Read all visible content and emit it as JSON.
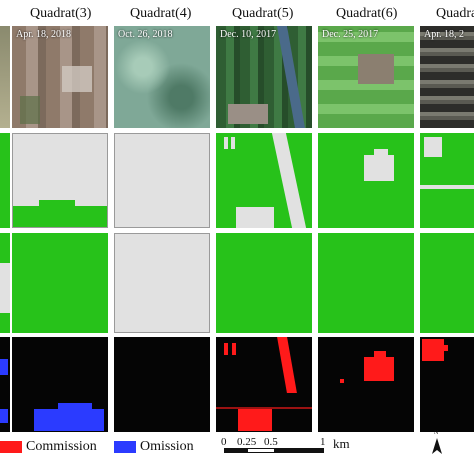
{
  "headers": [
    "Quadrat(3)",
    "Quadrat(4)",
    "Quadrat(5)",
    "Quadrat(6)",
    "Quadrat"
  ],
  "dates": [
    "Apr. 18, 2018",
    "Oct. 26, 2018",
    "Dec. 10, 2017",
    "Dec. 25, 2017",
    "Apr. 18, 2"
  ],
  "legend": {
    "commission_label": "Commission",
    "omission_label": "Omission",
    "commission_color": "#ff1a1a",
    "omission_color": "#2b3bff"
  },
  "scalebar": {
    "tick_0": "0",
    "tick_025": "0.25",
    "tick_05": "0.5",
    "tick_1": "1",
    "unit": "km"
  },
  "north_arrow": "N",
  "colors": {
    "cropland": "#27c21a",
    "non_cropland": "#e1e1e1",
    "background_error_map": "#050505"
  }
}
